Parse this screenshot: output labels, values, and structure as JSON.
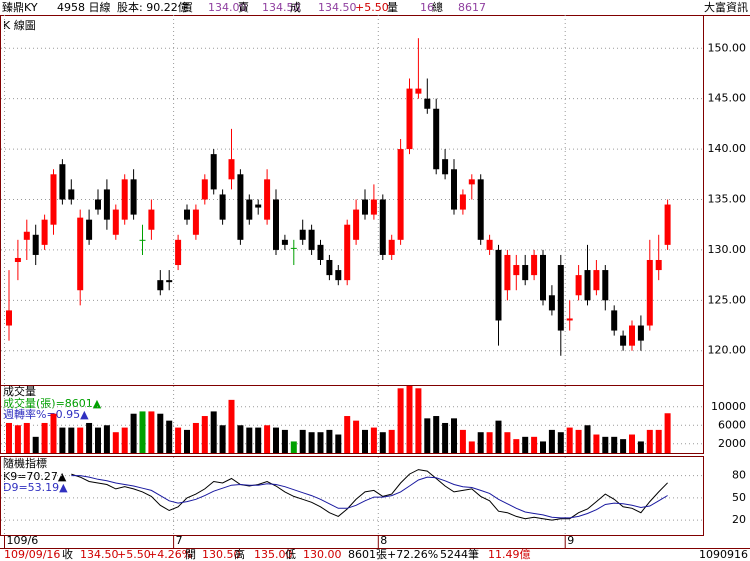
{
  "header": {
    "items": [
      "臻鼎KY",
      "4958 日線",
      "股本: 90.22億",
      "買",
      "134.00",
      "賣",
      "134.50",
      "成",
      "134.50",
      "+5.50",
      "量",
      "16",
      "總",
      "8617"
    ],
    "brand": "大富資訊"
  },
  "footer": {
    "items": [
      "109/09/16",
      "收",
      "134.50",
      "+5.50",
      "+4.26%",
      "開",
      "130.50",
      "高",
      "135.00",
      "低",
      "130.00",
      "8601張+72.26%",
      "5244筆",
      "11.49億"
    ],
    "code": "1090916"
  },
  "chart_data": [
    {
      "type": "candlestick",
      "title": "K 線圖",
      "categories": [
        "109/6",
        null,
        null,
        null,
        null,
        null,
        null,
        null,
        null,
        null,
        null,
        null,
        null,
        null,
        null,
        null,
        null,
        null,
        null,
        "7",
        null,
        null,
        null,
        null,
        null,
        null,
        null,
        null,
        null,
        null,
        null,
        null,
        null,
        null,
        null,
        null,
        null,
        null,
        null,
        null,
        null,
        null,
        "8",
        null,
        null,
        null,
        null,
        null,
        null,
        null,
        null,
        null,
        null,
        null,
        null,
        null,
        null,
        null,
        null,
        null,
        null,
        null,
        null,
        "9",
        null,
        null,
        null,
        null,
        null,
        null,
        null,
        null,
        null,
        null,
        null
      ],
      "open": [
        122.5,
        128.8,
        131,
        131.5,
        130.5,
        132.5,
        138.5,
        136,
        126,
        133,
        135,
        136,
        131.5,
        133,
        137,
        131,
        132,
        127,
        127,
        128.5,
        134,
        131.5,
        135,
        139.5,
        135.5,
        137,
        137.5,
        135,
        134.5,
        133,
        135,
        131,
        130.2,
        132,
        132,
        130.5,
        129,
        128,
        127,
        131,
        135,
        133.5,
        135,
        129.5,
        131,
        140,
        145.5,
        145,
        144,
        139,
        138,
        134,
        136.5,
        137,
        130,
        130,
        126,
        127.5,
        128.5,
        127.5,
        129.5,
        125.5,
        128.5,
        123,
        125.5,
        128,
        126,
        128,
        124,
        121.5,
        120.5,
        122.5,
        122.5,
        128,
        130.5
      ],
      "high": [
        128,
        131,
        133,
        132.5,
        133.5,
        138,
        139,
        137,
        134,
        134,
        136,
        137,
        134.5,
        137.5,
        138,
        132.5,
        135,
        128,
        128,
        131.5,
        134.5,
        134.5,
        137.5,
        140,
        136,
        142,
        138,
        135.5,
        135,
        138,
        136,
        131.5,
        131,
        133,
        132.5,
        131,
        129.5,
        128.5,
        133,
        135,
        136,
        136.5,
        135.5,
        131.5,
        141,
        147,
        151,
        147,
        145,
        140,
        139,
        136,
        137.5,
        137.5,
        131.5,
        130.5,
        130,
        129.5,
        129.5,
        130,
        130,
        126.5,
        129.5,
        125,
        128.5,
        130.5,
        129,
        128.5,
        124.5,
        122,
        123,
        123.5,
        131,
        131.5,
        135
      ],
      "low": [
        121,
        127,
        129,
        128.5,
        130,
        131.5,
        134.5,
        134.5,
        124.5,
        130.5,
        133.5,
        132,
        131,
        132.5,
        133,
        129.5,
        131,
        125.5,
        126,
        128,
        132.5,
        131,
        134.5,
        135.5,
        132.5,
        136,
        130.5,
        132.5,
        133.5,
        132.5,
        129.5,
        130,
        128.5,
        130.5,
        129.5,
        128.5,
        127,
        126.5,
        126.5,
        130.5,
        133,
        133,
        129,
        129,
        130.5,
        139.5,
        145,
        143.5,
        137.5,
        137,
        133.5,
        133.5,
        135,
        130.5,
        129.5,
        120.5,
        125,
        126,
        126.5,
        127,
        124.5,
        123.5,
        119.5,
        122,
        125,
        124.5,
        125.5,
        124,
        121.5,
        120,
        120,
        120,
        122,
        127,
        130
      ],
      "close": [
        124,
        129.2,
        131.8,
        129.5,
        133,
        137.5,
        135,
        135,
        133.2,
        131,
        134,
        133,
        134,
        137,
        133.5,
        131,
        134,
        126,
        126.8,
        131,
        133,
        134,
        137,
        136,
        133,
        139,
        131,
        133,
        134.2,
        137,
        130,
        130.5,
        130.2,
        131,
        130,
        129,
        127.5,
        127,
        132.5,
        134,
        133.5,
        135,
        129.5,
        131,
        140,
        146,
        146,
        144,
        138,
        137.5,
        134,
        135.5,
        137,
        131,
        131,
        123,
        129.5,
        128.5,
        127,
        129.5,
        125,
        124,
        122,
        123.2,
        127.5,
        125,
        128,
        125,
        122,
        120.5,
        122.5,
        121,
        129,
        129,
        134.5
      ],
      "colors": {
        "up": "#ff0000",
        "down": "#000000",
        "flat": "#00a000"
      },
      "ylim": [
        116.6,
        153.3
      ],
      "yticks": [
        {
          "value": 120,
          "label": "120.00"
        },
        {
          "value": 125,
          "label": "125.00"
        },
        {
          "value": 130,
          "label": "130.00"
        },
        {
          "value": 135,
          "label": "135.00"
        },
        {
          "value": 140,
          "label": "140.00"
        },
        {
          "value": 145,
          "label": "145.00"
        },
        {
          "value": 150,
          "label": "150.00"
        }
      ],
      "grid": true
    },
    {
      "type": "bar",
      "title": "成交量",
      "annotations": [
        "成交量(張)=8601▲",
        "週轉率%=0.95▲"
      ],
      "values": [
        6500,
        6000,
        6500,
        3500,
        6500,
        8500,
        5500,
        5500,
        5500,
        6500,
        5500,
        6000,
        4500,
        5500,
        8500,
        9000,
        9000,
        8500,
        7000,
        5500,
        5000,
        6500,
        8000,
        9000,
        6000,
        11500,
        6000,
        5500,
        5500,
        6000,
        5500,
        5000,
        2500,
        5000,
        4500,
        4500,
        5000,
        4000,
        8000,
        7000,
        5000,
        5500,
        4500,
        5000,
        14000,
        14500,
        14000,
        7500,
        8000,
        6500,
        7500,
        5000,
        2500,
        4500,
        4500,
        7000,
        4500,
        3000,
        3500,
        3500,
        2500,
        5000,
        4500,
        5500,
        5000,
        6000,
        4000,
        3500,
        3500,
        3000,
        4000,
        2500,
        5000,
        5000,
        8601
      ],
      "ylim": [
        0,
        14500
      ],
      "yticks": [
        2000,
        6000,
        10000
      ],
      "grid": true
    },
    {
      "type": "line",
      "title": "隨機指標",
      "annotations": [
        "K9=70.27▲",
        "D9=53.19▲"
      ],
      "series": [
        {
          "name": "K9",
          "color": "#000000",
          "values": [
            null,
            null,
            null,
            null,
            null,
            null,
            null,
            82,
            78,
            72,
            70,
            68,
            62,
            65,
            62,
            58,
            52,
            40,
            33,
            38,
            50,
            55,
            62,
            72,
            70,
            76,
            68,
            66,
            68,
            72,
            66,
            58,
            52,
            48,
            44,
            38,
            30,
            25,
            35,
            48,
            58,
            60,
            52,
            55,
            70,
            82,
            88,
            86,
            76,
            66,
            58,
            60,
            62,
            52,
            46,
            32,
            30,
            25,
            22,
            24,
            22,
            20,
            22,
            22,
            30,
            35,
            45,
            55,
            48,
            38,
            36,
            30,
            45,
            58,
            70.27
          ]
        },
        {
          "name": "D9",
          "color": "#1a1aa0",
          "values": [
            null,
            null,
            null,
            null,
            null,
            null,
            null,
            80,
            80,
            78,
            75,
            73,
            70,
            68,
            66,
            63,
            60,
            53,
            46,
            43,
            45,
            48,
            53,
            59,
            63,
            67,
            68,
            67,
            67,
            69,
            68,
            65,
            61,
            57,
            53,
            48,
            42,
            36,
            36,
            40,
            46,
            51,
            51,
            53,
            58,
            66,
            74,
            78,
            77,
            73,
            68,
            65,
            64,
            60,
            56,
            48,
            42,
            36,
            31,
            29,
            27,
            24,
            23,
            23,
            25,
            29,
            34,
            41,
            43,
            42,
            40,
            37,
            39,
            46,
            53.19
          ]
        }
      ],
      "ylim": [
        0,
        105
      ],
      "yticks": [
        20,
        50,
        80
      ],
      "grid": true
    }
  ]
}
